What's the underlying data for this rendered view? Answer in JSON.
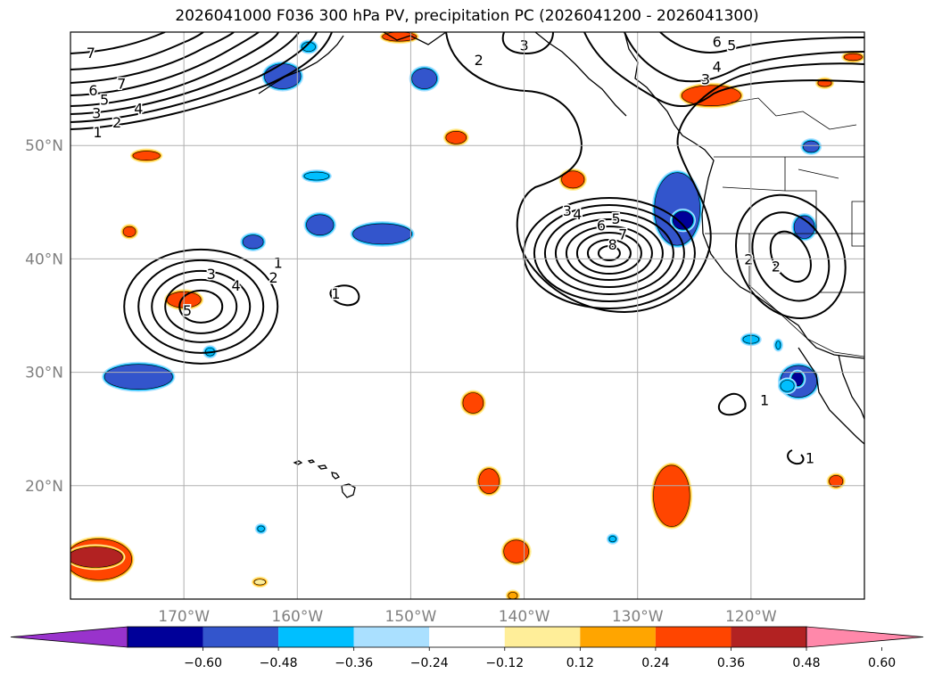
{
  "title": "2026041000 F036 300 hPa PV, precipitation PC (2026041200 - 2026041300)",
  "map": {
    "lat_range": [
      10,
      60
    ],
    "lon_range": [
      -180,
      -110
    ],
    "lat_ticks": [
      {
        "lat": 20,
        "label": "20°N"
      },
      {
        "lat": 30,
        "label": "30°N"
      },
      {
        "lat": 40,
        "label": "40°N"
      },
      {
        "lat": 50,
        "label": "50°N"
      }
    ],
    "lon_ticks": [
      {
        "lon": -170,
        "label": "170°W"
      },
      {
        "lon": -160,
        "label": "160°W"
      },
      {
        "lon": -150,
        "label": "150°W"
      },
      {
        "lon": -140,
        "label": "140°W"
      },
      {
        "lon": -130,
        "label": "130°W"
      },
      {
        "lon": -120,
        "label": "120°W"
      }
    ],
    "grid": true
  },
  "colorbar": {
    "extend": "both",
    "bins": [
      {
        "color": "#9933cc"
      },
      {
        "color": "#000099"
      },
      {
        "color": "#3355cc"
      },
      {
        "color": "#00bfff"
      },
      {
        "color": "#aae0ff"
      },
      {
        "color": "#ffffff"
      },
      {
        "color": "#ffee99"
      },
      {
        "color": "#ffa500"
      },
      {
        "color": "#ff4500"
      },
      {
        "color": "#b22222"
      },
      {
        "color": "#ff88aa"
      }
    ],
    "tick_labels": [
      "−0.60",
      "−0.48",
      "−0.36",
      "−0.24",
      "−0.12",
      "0.12",
      "0.24",
      "0.36",
      "0.48",
      "0.60"
    ]
  },
  "pv_contours": {
    "systems": [
      {
        "center": [
          -168.5,
          35.8
        ],
        "levels": [
          1,
          2,
          3,
          4,
          5
        ]
      },
      {
        "center": [
          -132.5,
          40.5
        ],
        "levels": [
          1,
          2,
          3,
          4,
          5,
          6,
          7,
          8
        ]
      },
      {
        "center": [
          -116.5,
          40.2
        ],
        "levels": [
          1,
          2,
          3
        ]
      }
    ],
    "labels": [
      {
        "text": "7",
        "lon": -178.2,
        "lat": 58.1
      },
      {
        "text": "7",
        "lon": -175.5,
        "lat": 55.4
      },
      {
        "text": "6",
        "lon": -178.0,
        "lat": 54.8
      },
      {
        "text": "5",
        "lon": -177.0,
        "lat": 54.0
      },
      {
        "text": "4",
        "lon": -174.0,
        "lat": 53.2
      },
      {
        "text": "3",
        "lon": -177.7,
        "lat": 52.8
      },
      {
        "text": "2",
        "lon": -175.9,
        "lat": 52.0
      },
      {
        "text": "1",
        "lon": -177.6,
        "lat": 51.1
      },
      {
        "text": "2",
        "lon": -144.0,
        "lat": 57.5
      },
      {
        "text": "3",
        "lon": -140.0,
        "lat": 58.8
      },
      {
        "text": "6",
        "lon": -123.0,
        "lat": 59.1
      },
      {
        "text": "5",
        "lon": -121.7,
        "lat": 58.8
      },
      {
        "text": "4",
        "lon": -123.0,
        "lat": 56.9
      },
      {
        "text": "3",
        "lon": -124.0,
        "lat": 55.8
      },
      {
        "text": "1",
        "lon": -161.7,
        "lat": 39.6
      },
      {
        "text": "2",
        "lon": -162.1,
        "lat": 38.3
      },
      {
        "text": "3",
        "lon": -167.6,
        "lat": 38.6
      },
      {
        "text": "4",
        "lon": -165.4,
        "lat": 37.6
      },
      {
        "text": "5",
        "lon": -169.7,
        "lat": 35.4
      },
      {
        "text": "1",
        "lon": -156.6,
        "lat": 36.9
      },
      {
        "text": "3",
        "lon": -136.2,
        "lat": 44.2
      },
      {
        "text": "4",
        "lon": -135.3,
        "lat": 43.9
      },
      {
        "text": "5",
        "lon": -131.9,
        "lat": 43.5
      },
      {
        "text": "6",
        "lon": -133.2,
        "lat": 42.9
      },
      {
        "text": "7",
        "lon": -131.3,
        "lat": 42.1
      },
      {
        "text": "8",
        "lon": -132.2,
        "lat": 41.2
      },
      {
        "text": "2",
        "lon": -120.2,
        "lat": 39.9
      },
      {
        "text": "2",
        "lon": -117.8,
        "lat": 39.3
      },
      {
        "text": "1",
        "lon": -118.8,
        "lat": 27.5
      },
      {
        "text": "1",
        "lon": -114.8,
        "lat": 22.4
      }
    ]
  },
  "precip_blobs": [
    {
      "lon": -161.3,
      "lat": 56.1,
      "rx": 1.6,
      "ry": 1.1,
      "level": "neg2"
    },
    {
      "lon": -148.8,
      "lat": 55.9,
      "rx": 1.1,
      "ry": 0.9,
      "level": "neg2"
    },
    {
      "lon": -158.3,
      "lat": 47.3,
      "rx": 1.1,
      "ry": 0.35,
      "level": "neg1"
    },
    {
      "lon": -158.0,
      "lat": 43.0,
      "rx": 1.2,
      "ry": 0.9,
      "level": "neg2"
    },
    {
      "lon": -152.5,
      "lat": 42.2,
      "rx": 2.6,
      "ry": 0.9,
      "level": "neg2"
    },
    {
      "lon": -163.9,
      "lat": 41.5,
      "rx": 0.9,
      "ry": 0.6,
      "level": "neg2"
    },
    {
      "lon": -167.7,
      "lat": 31.8,
      "rx": 0.4,
      "ry": 0.35,
      "level": "neg1"
    },
    {
      "lon": -174.0,
      "lat": 29.6,
      "rx": 3.0,
      "ry": 1.1,
      "level": "neg2"
    },
    {
      "lon": -126.5,
      "lat": 44.4,
      "rx": 2.0,
      "ry": 3.2,
      "level": "neg2"
    },
    {
      "lon": -126.0,
      "lat": 43.4,
      "rx": 0.9,
      "ry": 0.8,
      "level": "neg4"
    },
    {
      "lon": -115.3,
      "lat": 42.8,
      "rx": 0.9,
      "ry": 1.0,
      "level": "neg2"
    },
    {
      "lon": -114.7,
      "lat": 49.9,
      "rx": 0.7,
      "ry": 0.5,
      "level": "neg2"
    },
    {
      "lon": -120.0,
      "lat": 32.9,
      "rx": 0.7,
      "ry": 0.35,
      "level": "neg1"
    },
    {
      "lon": -117.6,
      "lat": 32.4,
      "rx": 0.2,
      "ry": 0.35,
      "level": "neg1"
    },
    {
      "lon": -115.8,
      "lat": 29.2,
      "rx": 1.6,
      "ry": 1.4,
      "level": "neg2"
    },
    {
      "lon": -115.9,
      "lat": 29.4,
      "rx": 0.5,
      "ry": 0.6,
      "level": "neg4"
    },
    {
      "lon": -116.8,
      "lat": 28.8,
      "rx": 0.6,
      "ry": 0.5,
      "level": "neg1"
    },
    {
      "lon": -159.0,
      "lat": 58.7,
      "rx": 0.6,
      "ry": 0.4,
      "level": "neg1"
    },
    {
      "lon": -132.2,
      "lat": 15.3,
      "rx": 0.3,
      "ry": 0.25,
      "level": "neg1"
    },
    {
      "lon": -163.2,
      "lat": 16.2,
      "rx": 0.3,
      "ry": 0.25,
      "level": "neg1"
    },
    {
      "lon": -170.0,
      "lat": 36.4,
      "rx": 1.5,
      "ry": 0.7,
      "level": "pos3"
    },
    {
      "lon": -173.3,
      "lat": 49.1,
      "rx": 1.2,
      "ry": 0.4,
      "level": "pos3"
    },
    {
      "lon": -174.8,
      "lat": 42.4,
      "rx": 0.55,
      "ry": 0.45,
      "level": "pos3"
    },
    {
      "lon": -146.0,
      "lat": 50.7,
      "rx": 0.9,
      "ry": 0.55,
      "level": "pos3"
    },
    {
      "lon": -135.7,
      "lat": 47.0,
      "rx": 1.0,
      "ry": 0.75,
      "level": "pos3"
    },
    {
      "lon": -123.5,
      "lat": 54.4,
      "rx": 2.6,
      "ry": 0.9,
      "level": "pos3"
    },
    {
      "lon": -113.5,
      "lat": 55.5,
      "rx": 0.6,
      "ry": 0.3,
      "level": "pos3"
    },
    {
      "lon": -111.0,
      "lat": 57.8,
      "rx": 0.8,
      "ry": 0.3,
      "level": "pos3"
    },
    {
      "lon": -151.0,
      "lat": 59.6,
      "rx": 1.5,
      "ry": 0.4,
      "level": "pos3"
    },
    {
      "lon": -144.5,
      "lat": 27.3,
      "rx": 0.9,
      "ry": 0.9,
      "level": "pos3"
    },
    {
      "lon": -143.1,
      "lat": 20.4,
      "rx": 0.9,
      "ry": 1.1,
      "level": "pos3"
    },
    {
      "lon": -140.7,
      "lat": 14.2,
      "rx": 1.1,
      "ry": 1.0,
      "level": "pos3"
    },
    {
      "lon": -127.0,
      "lat": 19.1,
      "rx": 1.6,
      "ry": 2.7,
      "level": "pos3"
    },
    {
      "lon": -112.5,
      "lat": 20.4,
      "rx": 0.6,
      "ry": 0.5,
      "level": "pos3"
    },
    {
      "lon": -163.3,
      "lat": 11.5,
      "rx": 0.5,
      "ry": 0.25,
      "level": "pos1"
    },
    {
      "lon": -177.5,
      "lat": 13.5,
      "rx": 2.9,
      "ry": 1.8,
      "level": "pos3"
    },
    {
      "lon": -177.8,
      "lat": 13.7,
      "rx": 2.4,
      "ry": 0.9,
      "level": "pos5"
    },
    {
      "lon": -141.0,
      "lat": 10.3,
      "rx": 0.4,
      "ry": 0.3,
      "level": "pos2"
    }
  ]
}
